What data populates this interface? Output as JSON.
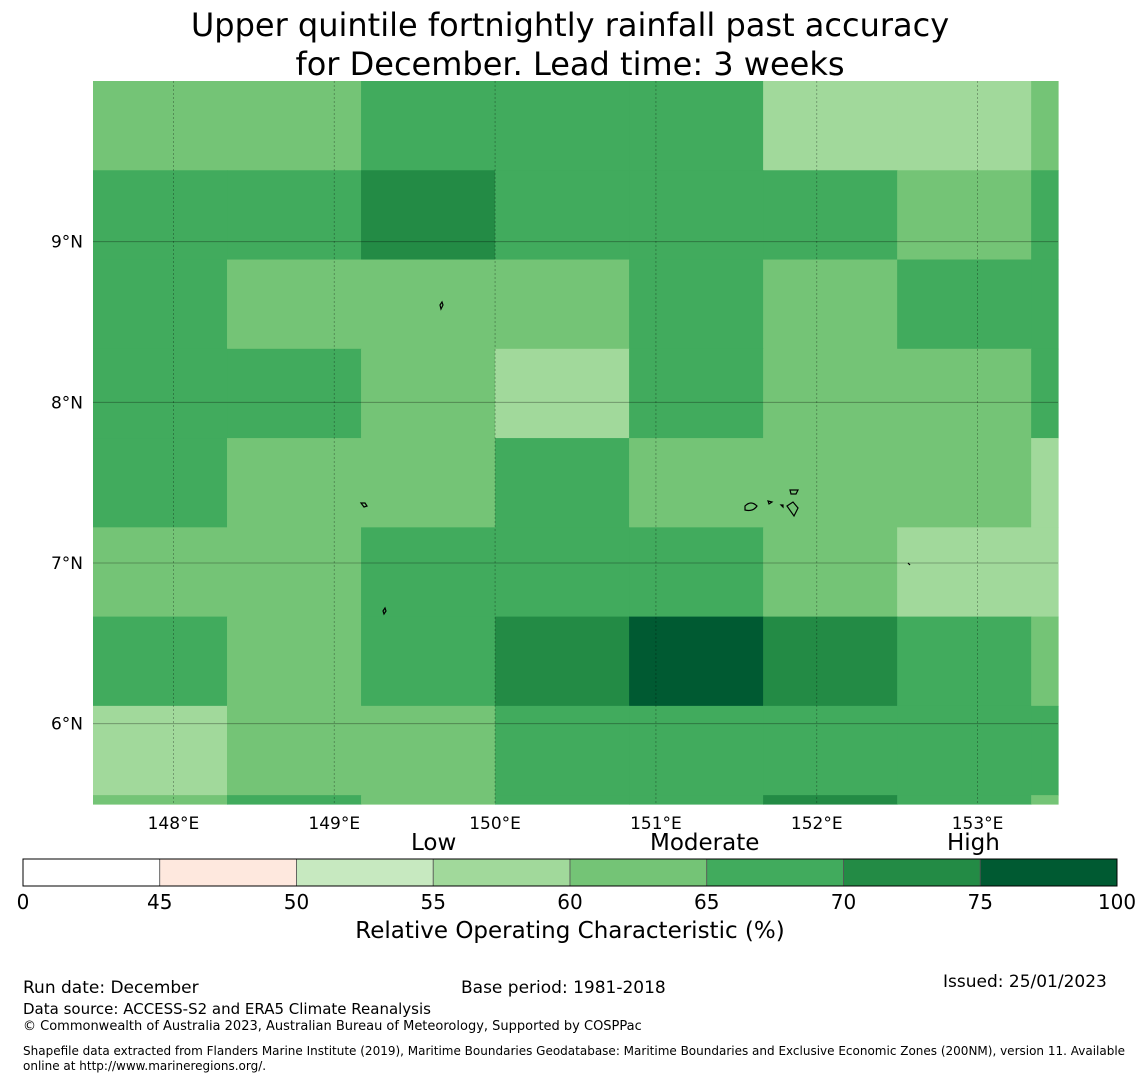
{
  "title_line1": "Upper quintile fortnightly rainfall past accuracy",
  "title_line2": "for December. Lead time: 3 weeks",
  "map": {
    "lon_range": [
      147.5,
      153.5
    ],
    "lat_range": [
      5.5,
      10.0
    ],
    "lon_ticks": [
      148,
      149,
      150,
      151,
      152,
      153
    ],
    "lon_labels": [
      "148°E",
      "149°E",
      "150°E",
      "151°E",
      "152°E",
      "153°E"
    ],
    "lat_ticks": [
      6,
      7,
      8,
      9
    ],
    "lat_labels": [
      "6°N",
      "7°N",
      "8°N",
      "9°N"
    ],
    "cell_size_deg": 0.8333,
    "col_start_lon": 147.5,
    "grid_top_lat": 10.0,
    "row_heights_deg": [
      0.5556,
      0.5556,
      0.5556,
      0.5556,
      0.5556,
      0.5556,
      0.5556,
      0.5556,
      0.1111
    ],
    "grid_values": [
      [
        62,
        62,
        67,
        67,
        67,
        57,
        57,
        62
      ],
      [
        67,
        67,
        72,
        67,
        67,
        67,
        62,
        67
      ],
      [
        67,
        62,
        62,
        62,
        67,
        62,
        67,
        67
      ],
      [
        67,
        67,
        62,
        57,
        67,
        62,
        62,
        67
      ],
      [
        67,
        62,
        62,
        67,
        62,
        62,
        62,
        57
      ],
      [
        62,
        62,
        67,
        67,
        67,
        62,
        57,
        57
      ],
      [
        67,
        62,
        67,
        72,
        78,
        72,
        67,
        62
      ],
      [
        57,
        62,
        62,
        67,
        67,
        67,
        67,
        67
      ],
      [
        62,
        67,
        62,
        67,
        67,
        72,
        67,
        62
      ]
    ]
  },
  "colorbar": {
    "boundaries": [
      0,
      45,
      50,
      55,
      60,
      65,
      70,
      75,
      100
    ],
    "tick_labels": [
      "0",
      "45",
      "50",
      "55",
      "60",
      "65",
      "70",
      "75",
      "100"
    ],
    "colors": [
      "#ffffff",
      "#fee8de",
      "#c7e9c0",
      "#a1d99b",
      "#74c476",
      "#41ab5d",
      "#238b45",
      "#005a32"
    ],
    "category_labels": [
      "Low",
      "Moderate",
      "High"
    ],
    "axis_label": "Relative Operating Characteristic (%)"
  },
  "footer": {
    "run_date": "Run date: December",
    "base_period": "Base period: 1981-2018",
    "issued": "Issued: 25/01/2023",
    "data_source": "Data source: ACCESS-S2 and ERA5 Climate Reanalysis",
    "copyright": "© Commonwealth of Australia 2023, Australian Bureau of Meteorology, Supported by COSPPac",
    "shapefile_line1": "Shapefile data extracted from Flanders Marine Institute (2019), Maritime Boundaries Geodatabase: Maritime Boundaries and Exclusive Economic Zones (200NM), version 11. Available",
    "shapefile_line2": "online at http://www.marineregions.org/."
  }
}
